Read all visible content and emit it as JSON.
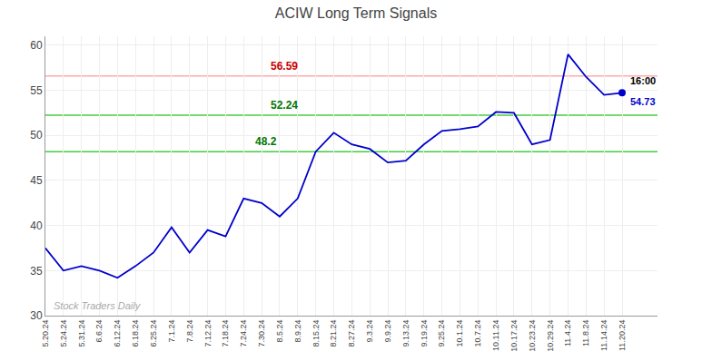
{
  "chart_data": {
    "type": "line",
    "title": "ACIW Long Term Signals",
    "categories": [
      "5.20.24",
      "5.24.24",
      "5.31.24",
      "6.6.24",
      "6.12.24",
      "6.18.24",
      "6.25.24",
      "7.1.24",
      "7.8.24",
      "7.12.24",
      "7.18.24",
      "7.24.24",
      "7.30.24",
      "8.5.24",
      "8.9.24",
      "8.15.24",
      "8.21.24",
      "8.27.24",
      "9.3.24",
      "9.9.24",
      "9.13.24",
      "9.19.24",
      "9.25.24",
      "10.1.24",
      "10.7.24",
      "10.11.24",
      "10.17.24",
      "10.23.24",
      "10.29.24",
      "11.4.24",
      "11.8.24",
      "11.14.24",
      "11.20.24"
    ],
    "values": [
      37.5,
      35.0,
      35.5,
      35.0,
      34.2,
      35.5,
      37.0,
      39.8,
      37.0,
      39.5,
      38.8,
      43.0,
      42.5,
      41.0,
      43.0,
      48.2,
      50.3,
      49.0,
      48.5,
      47.0,
      47.2,
      49.0,
      50.5,
      50.7,
      51.0,
      52.6,
      52.5,
      49.0,
      49.5,
      59.0,
      56.5,
      54.5,
      54.73
    ],
    "color": "#0000CC",
    "ylim": [
      30,
      61
    ],
    "yticks": [
      30,
      35,
      40,
      45,
      50,
      55,
      60
    ],
    "grid": true,
    "reference_lines": [
      {
        "value": 56.59,
        "color": "#FFAAAA",
        "label": "56.59",
        "label_color": "#CC0000"
      },
      {
        "value": 52.24,
        "color": "#44CC44",
        "label": "52.24",
        "label_color": "#007700"
      },
      {
        "value": 48.2,
        "color": "#44CC44",
        "label": "48.2",
        "label_color": "#007700"
      }
    ],
    "last_point": {
      "value": 54.73,
      "time_label": "16:00",
      "value_label": "54.73"
    },
    "watermark": "Stock Traders Daily"
  }
}
